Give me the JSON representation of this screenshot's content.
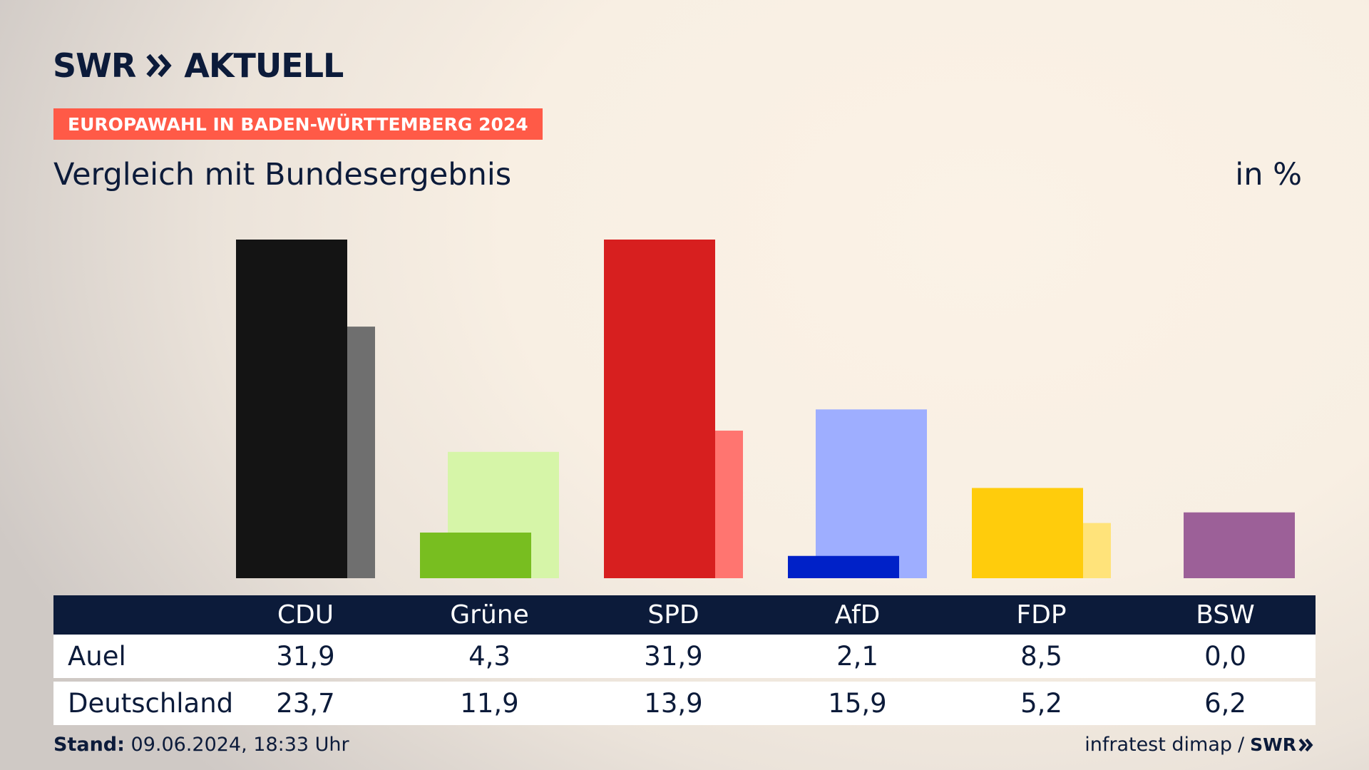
{
  "header": {
    "brand": "SWR",
    "brand_suffix": "AKTUELL",
    "tagline": "EUROPAWAHL IN BADEN-WÜRTTEMBERG 2024",
    "subtitle": "Vergleich mit Bundesergebnis",
    "unit": "in %"
  },
  "table": {
    "rows": [
      {
        "label": "Auel",
        "values": [
          "31,9",
          "4,3",
          "31,9",
          "2,1",
          "8,5",
          "0,0"
        ]
      },
      {
        "label": "Deutschland",
        "values": [
          "23,7",
          "11,9",
          "13,9",
          "15,9",
          "5,2",
          "6,2"
        ]
      }
    ]
  },
  "footer": {
    "stand_label": "Stand:",
    "stand_value": "09.06.2024, 18:33 Uhr",
    "source": "infratest dimap",
    "separator": "/",
    "brand_small": "SWR"
  },
  "chart_data": {
    "type": "bar",
    "categories": [
      "CDU",
      "Grüne",
      "SPD",
      "AfD",
      "FDP",
      "BSW"
    ],
    "series": [
      {
        "name": "Auel",
        "values": [
          31.9,
          4.3,
          31.9,
          2.1,
          8.5,
          0.0
        ]
      },
      {
        "name": "Deutschland",
        "values": [
          23.7,
          11.9,
          13.9,
          15.9,
          5.2,
          6.2
        ]
      }
    ],
    "colors": {
      "primary": [
        "#141414",
        "#78be20",
        "#d71f1f",
        "#0021c8",
        "#ffcc0c",
        "#9c6098"
      ],
      "secondary": [
        "#6f6f6f",
        "#d6f5a8",
        "#ff7570",
        "#9eaeff",
        "#ffe37a",
        "#9c6098"
      ]
    },
    "ylim": [
      0,
      31.9
    ],
    "grid": false,
    "legend": "none"
  }
}
